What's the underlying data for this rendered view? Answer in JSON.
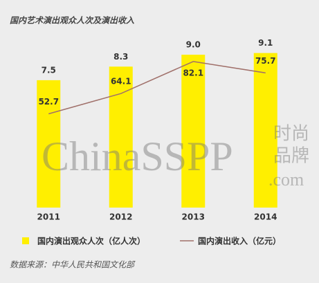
{
  "chart_data": {
    "type": "bar_line",
    "title": "国内艺术演出观众人次及演出收入",
    "categories": [
      "2011",
      "2012",
      "2013",
      "2014"
    ],
    "series": [
      {
        "name": "国内演出观众人次（亿人次）",
        "color": "#ffef00",
        "type": "bar",
        "values": [
          7.5,
          8.3,
          9.0,
          9.1
        ],
        "value_labels": [
          "7.5",
          "8.3",
          "9.0",
          "9.1"
        ]
      },
      {
        "name": "国内演出收入（亿元）",
        "color": "#a0706a",
        "type": "line",
        "axis": "y2",
        "values": [
          52.7,
          64.1,
          82.1,
          75.7
        ]
      }
    ],
    "ylim": [
      0,
      11
    ],
    "y2lim": [
      0,
      105
    ],
    "legend": "bottom",
    "source": "数据来源：中华人民共和国文化部",
    "watermark": [
      "ChinaSSPP",
      ".com",
      "时尚",
      "品牌"
    ]
  }
}
